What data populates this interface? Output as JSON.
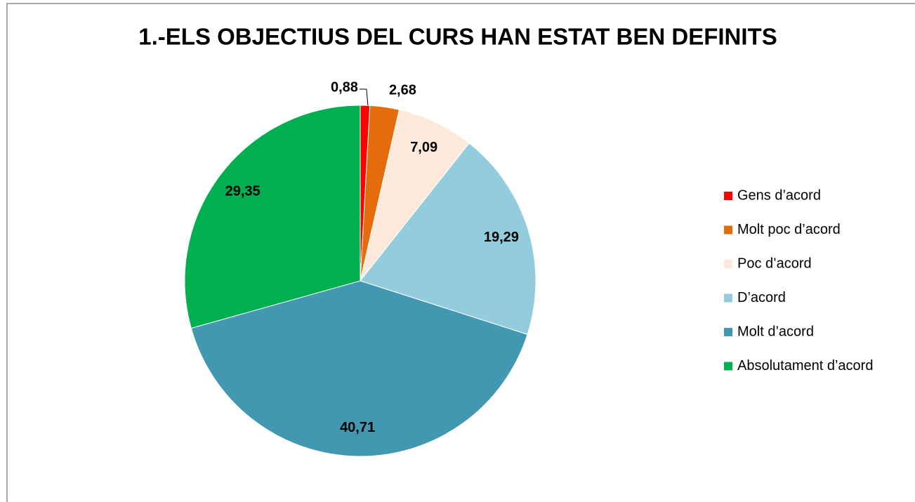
{
  "chart_data": {
    "type": "pie",
    "title": "1.-ELS OBJECTIUS DEL CURS HAN ESTAT BEN DEFINITS",
    "categories": [
      "Gens d’acord",
      "Molt poc d’acord",
      "Poc d’acord",
      "D’acord",
      "Molt d’acord",
      "Absolutament d’acord"
    ],
    "values": [
      0.88,
      2.68,
      7.09,
      19.29,
      40.71,
      29.35
    ],
    "value_labels": [
      "0,88",
      "2,68",
      "7,09",
      "19,29",
      "40,71",
      "29,35"
    ],
    "colors": [
      "#ff0000",
      "#e46c0a",
      "#fde9d9",
      "#93cddd",
      "#4298b0",
      "#00b050"
    ],
    "legend": "right"
  }
}
